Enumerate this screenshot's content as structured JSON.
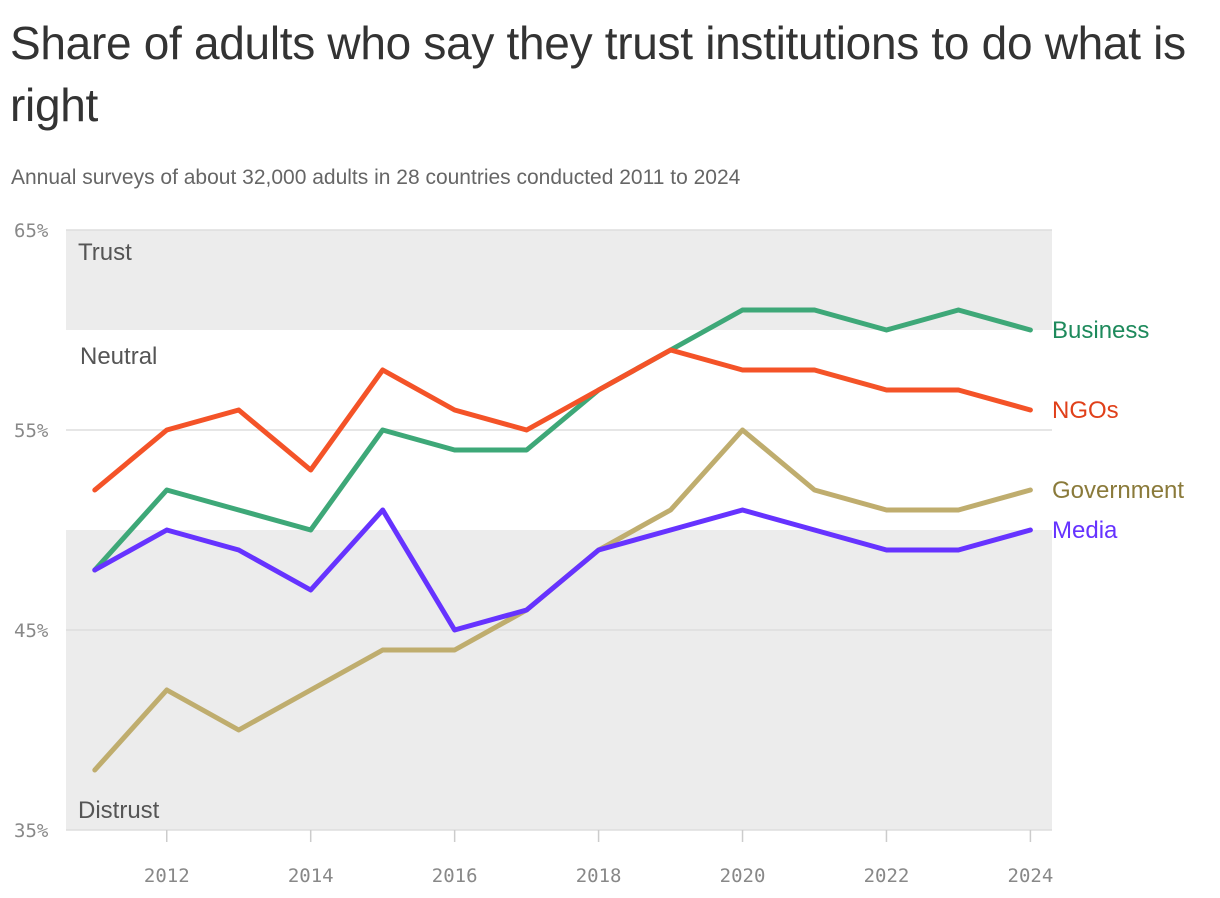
{
  "chart_data": {
    "type": "line",
    "title": "Share of adults who say they trust institutions to do what is right",
    "subtitle": "Annual surveys of about 32,000 adults in 28 countries conducted 2011 to 2024",
    "x": [
      2011,
      2012,
      2013,
      2014,
      2015,
      2016,
      2017,
      2018,
      2019,
      2020,
      2021,
      2022,
      2023,
      2024
    ],
    "xlim": [
      2010.6,
      2024.3
    ],
    "ylim": [
      35,
      65
    ],
    "y_ticks": [
      35,
      45,
      55,
      65
    ],
    "y_tick_format": "%",
    "x_ticks": [
      2012,
      2014,
      2016,
      2018,
      2020,
      2022,
      2024
    ],
    "grid": true,
    "bands": [
      {
        "label": "Trust",
        "from": 60,
        "to": 65,
        "color": "#ececec"
      },
      {
        "label": "Neutral",
        "from": 50,
        "to": 60,
        "color": "#ffffff"
      },
      {
        "label": "Distrust",
        "from": 35,
        "to": 50,
        "color": "#ececec"
      }
    ],
    "series": [
      {
        "name": "Government",
        "color": "#bfad6e",
        "label_color": "#8a7a3a",
        "values": [
          38,
          42,
          40,
          42,
          44,
          44,
          46,
          49,
          51,
          55,
          52,
          51,
          51,
          52
        ]
      },
      {
        "name": "Business",
        "color": "#3ea878",
        "label_color": "#1e8a5c",
        "values": [
          48,
          52,
          51,
          50,
          55,
          54,
          54,
          57,
          59,
          61,
          61,
          60,
          61,
          60
        ]
      },
      {
        "name": "NGOs",
        "color": "#f45328",
        "label_color": "#e0401a",
        "values": [
          52,
          55,
          56,
          53,
          58,
          56,
          55,
          57,
          59,
          58,
          58,
          57,
          57,
          56
        ]
      },
      {
        "name": "Media",
        "color": "#6633ff",
        "label_color": "#6633ff",
        "values": [
          48,
          50,
          49,
          47,
          51,
          45,
          46,
          49,
          50,
          51,
          50,
          49,
          49,
          50
        ]
      }
    ]
  }
}
